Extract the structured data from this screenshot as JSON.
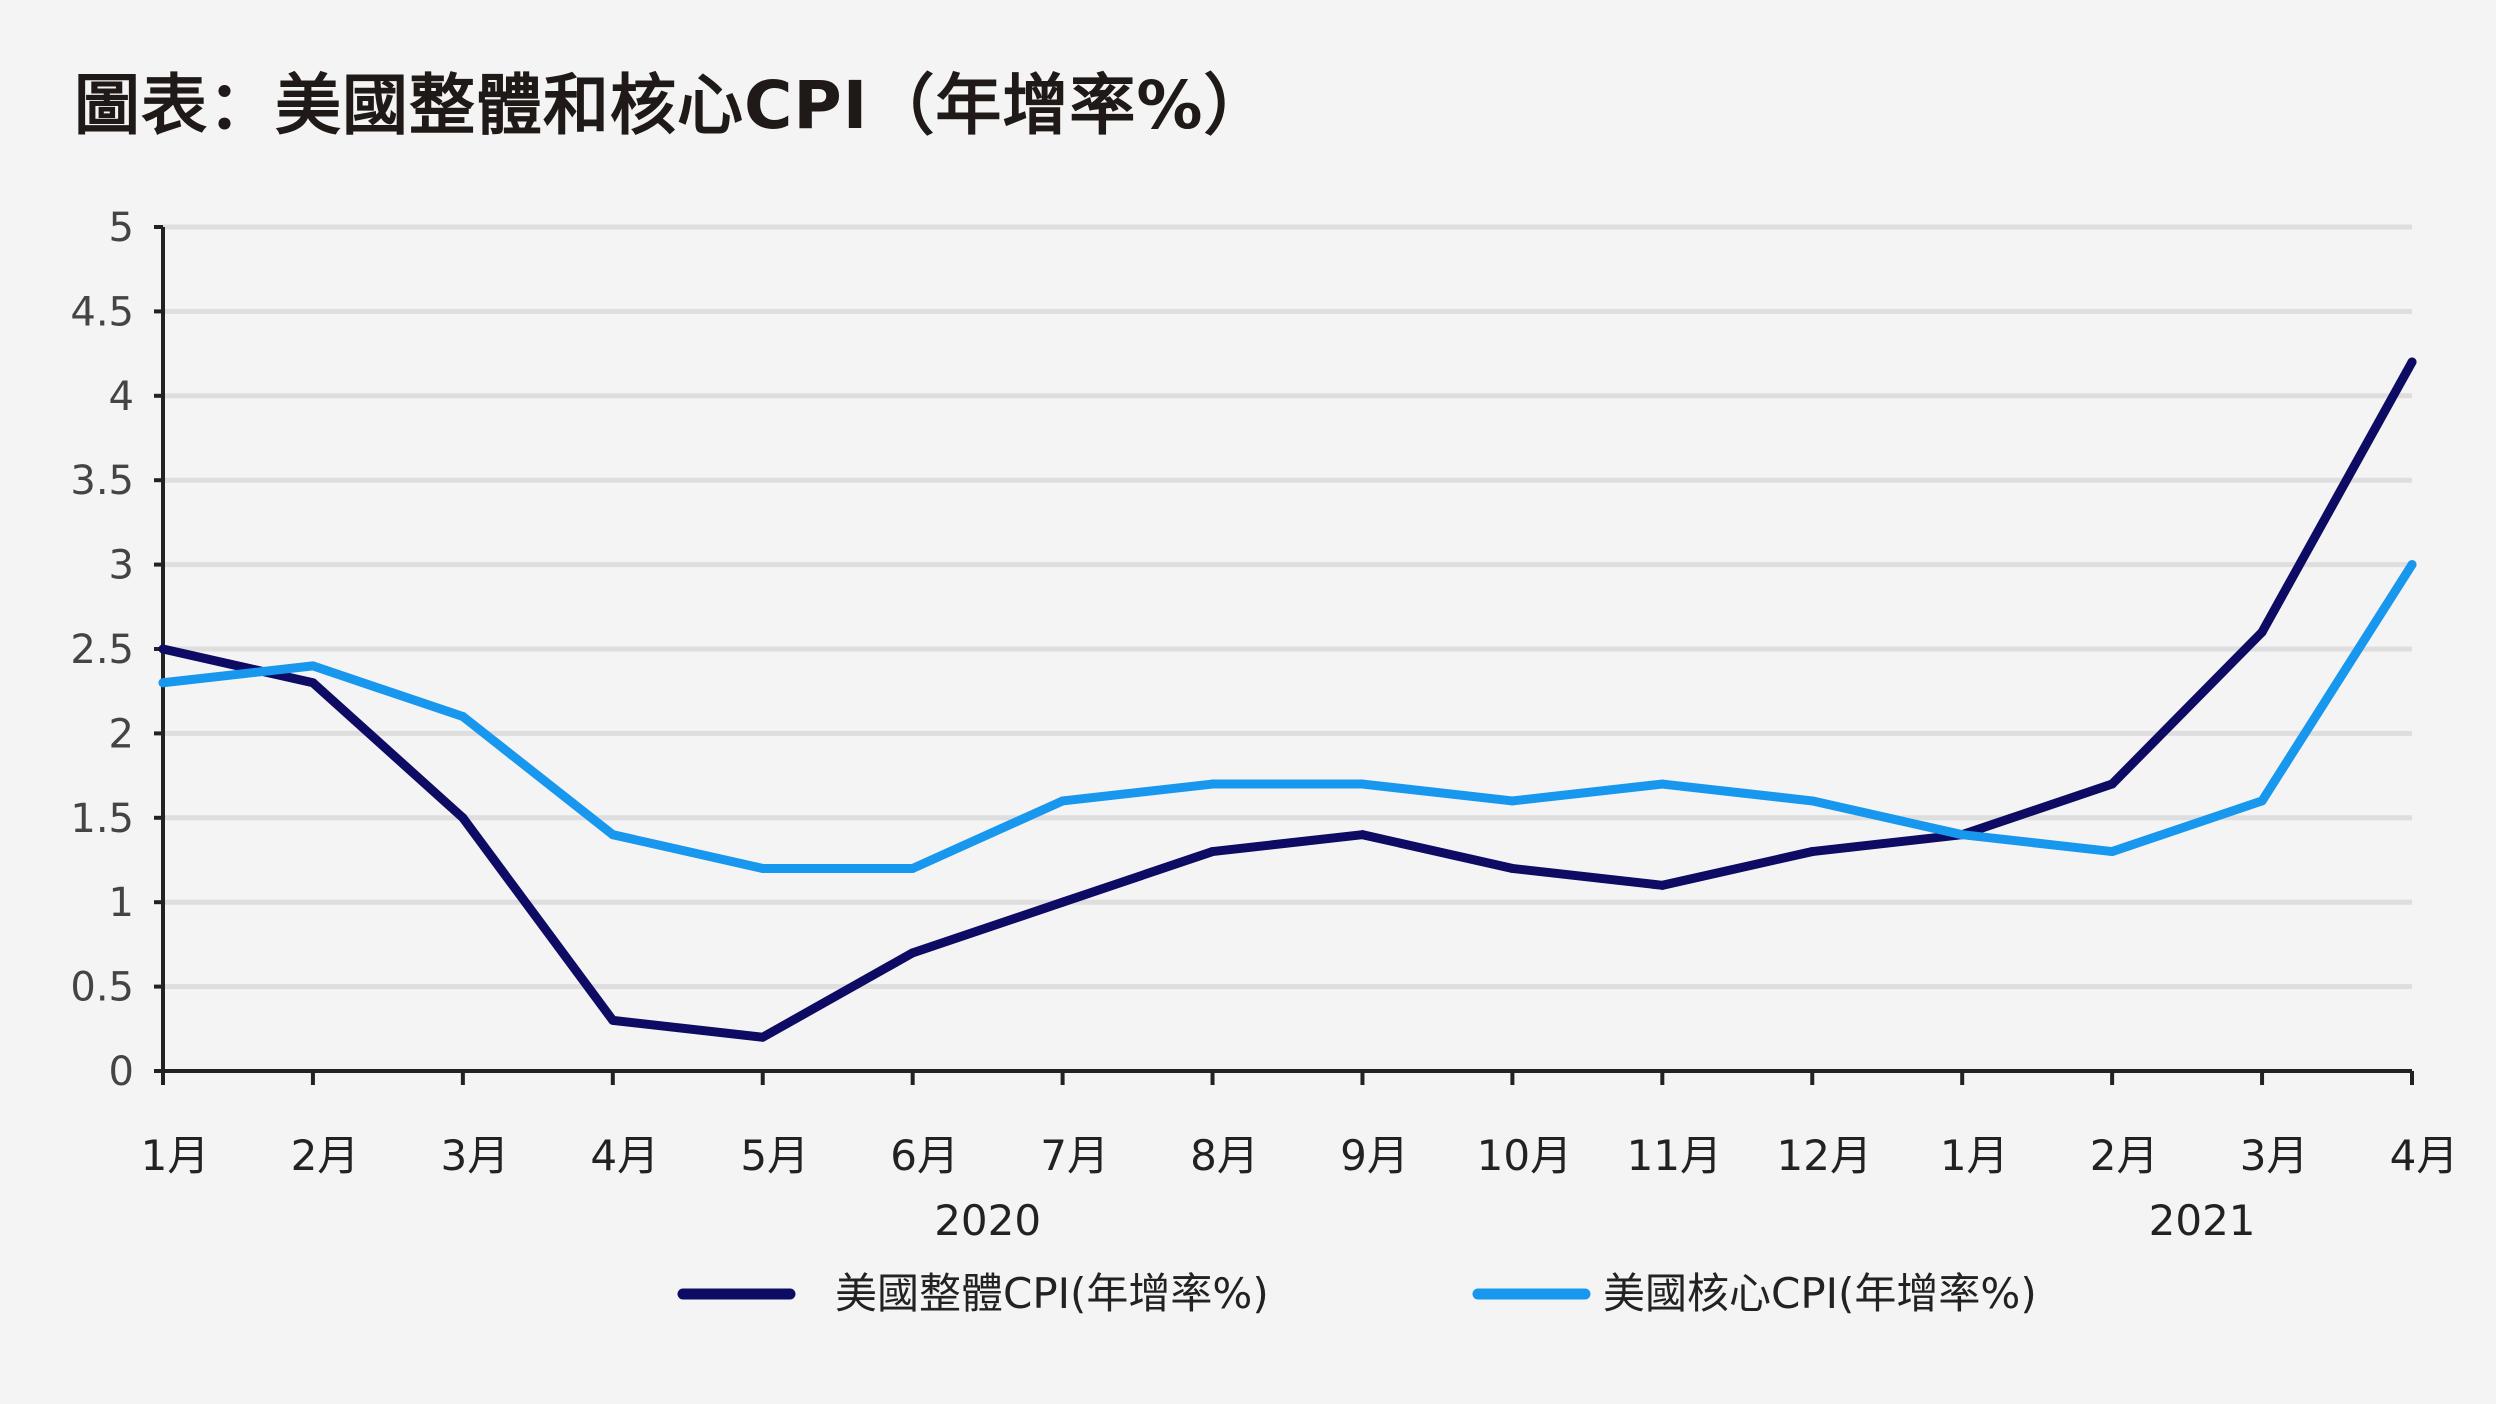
{
  "title": "圖表：美國整體和核心CPI（年增率%）",
  "chart_data": {
    "type": "line",
    "title": "圖表：美國整體和核心CPI（年增率%）",
    "categories": [
      "1月",
      "2月",
      "3月",
      "4月",
      "5月",
      "6月",
      "7月",
      "8月",
      "9月",
      "10月",
      "11月",
      "12月",
      "1月",
      "2月",
      "3月",
      "4月"
    ],
    "year_labels": [
      {
        "label": "2020",
        "index": 5.5
      },
      {
        "label": "2021",
        "index": 13.6
      }
    ],
    "y_ticks": [
      "0",
      "0.5",
      "1",
      "1.5",
      "2",
      "2.5",
      "3",
      "3.5",
      "4",
      "4.5",
      "5"
    ],
    "ylim": [
      0,
      5
    ],
    "grid": true,
    "legend_position": "bottom",
    "series": [
      {
        "name": "美國整體CPI(年增率%)",
        "color": "#0d0b63",
        "values": [
          2.5,
          2.3,
          1.5,
          0.3,
          0.2,
          0.7,
          1.0,
          1.3,
          1.4,
          1.2,
          1.1,
          1.3,
          1.4,
          1.7,
          2.6,
          4.2
        ]
      },
      {
        "name": "美國核心CPI(年增率%)",
        "color": "#1897ee",
        "values": [
          2.3,
          2.4,
          2.1,
          1.4,
          1.2,
          1.2,
          1.6,
          1.7,
          1.7,
          1.6,
          1.7,
          1.6,
          1.4,
          1.3,
          1.6,
          3.0
        ]
      }
    ]
  }
}
